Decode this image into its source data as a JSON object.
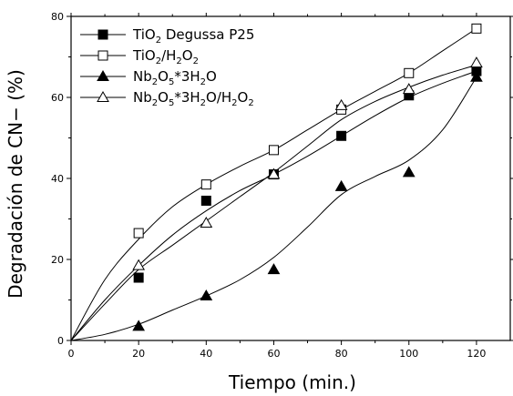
{
  "chart_data": {
    "type": "line",
    "xlabel": "Tiempo (min.)",
    "ylabel": "Degradación de CN− (%)",
    "xlim": [
      0,
      130
    ],
    "ylim": [
      0,
      80
    ],
    "xticks": [
      "0",
      "20",
      "40",
      "60",
      "80",
      "100",
      "120"
    ],
    "yticks": [
      "0",
      "20",
      "40",
      "60",
      "80"
    ],
    "grid": false,
    "legend_position": "top-left",
    "x": [
      0,
      20,
      40,
      60,
      80,
      100,
      120
    ],
    "series": [
      {
        "name": "TiO2 Degussa P25",
        "label_parts": [
          [
            "TiO",
            "n"
          ],
          [
            "2",
            "sub"
          ],
          [
            " Degussa P25",
            "n"
          ]
        ],
        "marker": "square-filled",
        "values": [
          0,
          15.5,
          34.5,
          41,
          50.5,
          60.5,
          66.5
        ]
      },
      {
        "name": "TiO2/H2O2",
        "label_parts": [
          [
            "TiO",
            "n"
          ],
          [
            "2",
            "sub"
          ],
          [
            "/H",
            "n"
          ],
          [
            "2",
            "sub"
          ],
          [
            "O",
            "n"
          ],
          [
            "2",
            "sub"
          ]
        ],
        "marker": "square-open",
        "values": [
          0,
          26.5,
          38.5,
          47,
          57,
          66,
          77
        ]
      },
      {
        "name": "Nb2O5*3H2O",
        "label_parts": [
          [
            "Nb",
            "n"
          ],
          [
            "2",
            "sub"
          ],
          [
            "O",
            "n"
          ],
          [
            "5",
            "sub"
          ],
          [
            "*3H",
            "n"
          ],
          [
            "2",
            "sub"
          ],
          [
            "O",
            "n"
          ]
        ],
        "marker": "triangle-filled",
        "values": [
          0,
          3.5,
          11,
          17.5,
          38,
          41.5,
          65
        ]
      },
      {
        "name": "Nb2O5*3H2O/H2O2",
        "label_parts": [
          [
            "Nb",
            "n"
          ],
          [
            "2",
            "sub"
          ],
          [
            "O",
            "n"
          ],
          [
            "5",
            "sub"
          ],
          [
            "*3H",
            "n"
          ],
          [
            "2",
            "sub"
          ],
          [
            "O/H",
            "n"
          ],
          [
            "2",
            "sub"
          ],
          [
            "O",
            "n"
          ],
          [
            "2",
            "sub"
          ]
        ],
        "marker": "triangle-open",
        "values": [
          0,
          18.5,
          29,
          41,
          58,
          62,
          68.5
        ]
      }
    ],
    "fits": [
      [
        [
          0,
          0
        ],
        [
          10,
          10
        ],
        [
          20,
          18.5
        ],
        [
          30,
          26
        ],
        [
          40,
          32
        ],
        [
          50,
          37
        ],
        [
          60,
          41
        ],
        [
          70,
          45.5
        ],
        [
          80,
          50.5
        ],
        [
          90,
          55.5
        ],
        [
          100,
          60
        ],
        [
          110,
          63.5
        ],
        [
          120,
          66.5
        ]
      ],
      [
        [
          0,
          0
        ],
        [
          10,
          15
        ],
        [
          20,
          25
        ],
        [
          30,
          33
        ],
        [
          40,
          38.5
        ],
        [
          50,
          43
        ],
        [
          60,
          47
        ],
        [
          70,
          52
        ],
        [
          80,
          57
        ],
        [
          90,
          61.5
        ],
        [
          100,
          66
        ],
        [
          110,
          71.5
        ],
        [
          120,
          77
        ]
      ],
      [
        [
          0,
          0
        ],
        [
          10,
          1.5
        ],
        [
          20,
          4
        ],
        [
          30,
          7.5
        ],
        [
          40,
          11
        ],
        [
          50,
          15
        ],
        [
          60,
          20.5
        ],
        [
          70,
          28
        ],
        [
          80,
          36
        ],
        [
          90,
          40.5
        ],
        [
          100,
          44.5
        ],
        [
          110,
          52
        ],
        [
          120,
          65
        ]
      ],
      [
        [
          0,
          0
        ],
        [
          10,
          9
        ],
        [
          20,
          17.5
        ],
        [
          30,
          23.5
        ],
        [
          40,
          29.5
        ],
        [
          50,
          35.5
        ],
        [
          60,
          41.5
        ],
        [
          70,
          48
        ],
        [
          80,
          54.5
        ],
        [
          90,
          59
        ],
        [
          100,
          62.5
        ],
        [
          110,
          65.5
        ],
        [
          120,
          68
        ]
      ]
    ]
  }
}
